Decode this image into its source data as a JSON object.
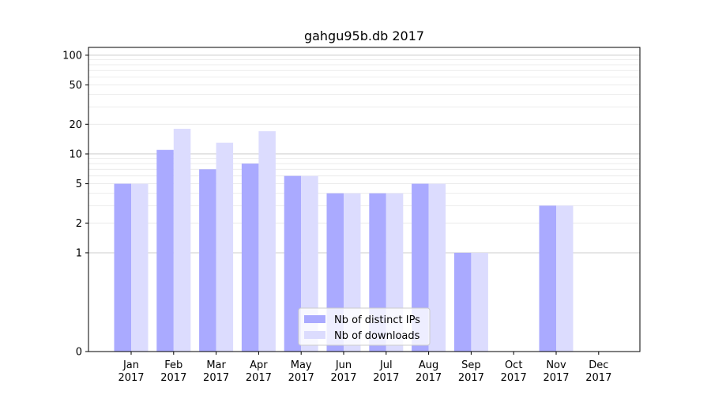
{
  "chart_data": {
    "type": "bar",
    "title": "gahgu95b.db 2017",
    "xlabel": "",
    "ylabel": "",
    "y_scale": "symlog",
    "ylim": [
      0,
      120
    ],
    "yticks": [
      0,
      1,
      2,
      5,
      10,
      20,
      50,
      100
    ],
    "categories": [
      [
        "Jan",
        "2017"
      ],
      [
        "Feb",
        "2017"
      ],
      [
        "Mar",
        "2017"
      ],
      [
        "Apr",
        "2017"
      ],
      [
        "May",
        "2017"
      ],
      [
        "Jun",
        "2017"
      ],
      [
        "Jul",
        "2017"
      ],
      [
        "Aug",
        "2017"
      ],
      [
        "Sep",
        "2017"
      ],
      [
        "Oct",
        "2017"
      ],
      [
        "Nov",
        "2017"
      ],
      [
        "Dec",
        "2017"
      ]
    ],
    "series": [
      {
        "name": "Nb of distinct IPs",
        "color": "#aaaaff",
        "values": [
          5,
          11,
          7,
          8,
          6,
          4,
          4,
          5,
          1,
          0,
          3,
          0
        ]
      },
      {
        "name": "Nb of downloads",
        "color": "#dcdcfe",
        "values": [
          5,
          18,
          13,
          17,
          6,
          4,
          4,
          5,
          1,
          0,
          3,
          0
        ]
      }
    ],
    "legend_position": "lower-center",
    "grid": true
  }
}
